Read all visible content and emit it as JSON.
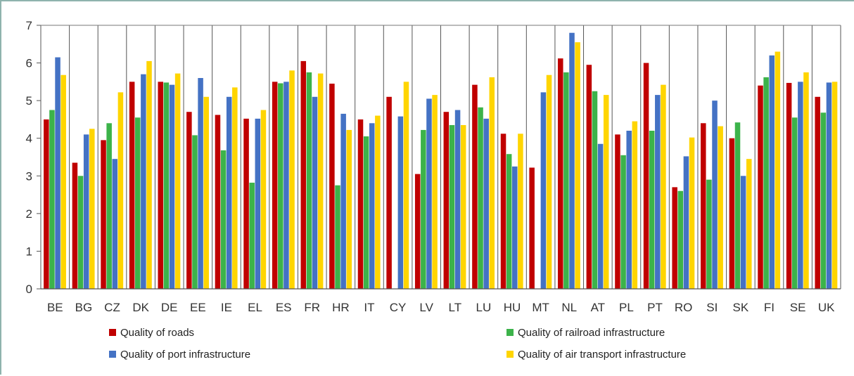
{
  "chart_data": {
    "type": "bar",
    "title": "",
    "xlabel": "",
    "ylabel": "",
    "ylim": [
      0,
      7
    ],
    "yticks": [
      0,
      1,
      2,
      3,
      4,
      5,
      6,
      7
    ],
    "grid": "vertical separators between categories",
    "legend_position": "bottom",
    "categories": [
      "BE",
      "BG",
      "CZ",
      "DK",
      "DE",
      "EE",
      "IE",
      "EL",
      "ES",
      "FR",
      "HR",
      "IT",
      "CY",
      "LV",
      "LT",
      "LU",
      "HU",
      "MT",
      "NL",
      "AT",
      "PL",
      "PT",
      "RO",
      "SI",
      "SK",
      "FI",
      "SE",
      "UK"
    ],
    "series": [
      {
        "name": "Quality of roads",
        "color": "#c00000",
        "values": [
          4.5,
          3.35,
          3.95,
          5.5,
          5.5,
          4.7,
          4.62,
          4.52,
          5.5,
          6.05,
          5.45,
          4.5,
          5.1,
          3.05,
          4.7,
          5.42,
          4.12,
          3.22,
          6.12,
          5.95,
          4.1,
          6.0,
          2.7,
          4.4,
          4.0,
          5.4,
          5.47,
          5.1
        ]
      },
      {
        "name": "Quality of railroad infrastructure",
        "color": "#3cb34a",
        "values": [
          4.75,
          3.0,
          4.4,
          4.55,
          5.48,
          4.08,
          3.68,
          2.82,
          5.46,
          5.75,
          2.75,
          4.05,
          null,
          4.22,
          4.35,
          4.82,
          3.58,
          null,
          5.75,
          5.25,
          3.55,
          4.2,
          2.6,
          2.9,
          4.42,
          5.62,
          4.55,
          4.68
        ]
      },
      {
        "name": "Quality of port infrastructure",
        "color": "#4472c4",
        "values": [
          6.15,
          4.1,
          3.45,
          5.7,
          5.42,
          5.6,
          5.1,
          4.52,
          5.5,
          5.1,
          4.65,
          4.4,
          4.58,
          5.05,
          4.75,
          4.52,
          3.25,
          5.22,
          6.8,
          3.85,
          4.2,
          5.15,
          3.52,
          5.0,
          3.0,
          6.2,
          5.5,
          5.48
        ]
      },
      {
        "name": "Quality of air transport infrastructure",
        "color": "#ffd500",
        "values": [
          5.68,
          4.25,
          5.22,
          6.05,
          5.72,
          5.1,
          5.35,
          4.75,
          5.8,
          5.72,
          4.22,
          4.6,
          5.5,
          5.15,
          4.35,
          5.62,
          4.12,
          5.68,
          6.55,
          5.15,
          4.45,
          5.42,
          4.02,
          4.32,
          3.45,
          6.3,
          5.75,
          5.5
        ]
      }
    ]
  }
}
